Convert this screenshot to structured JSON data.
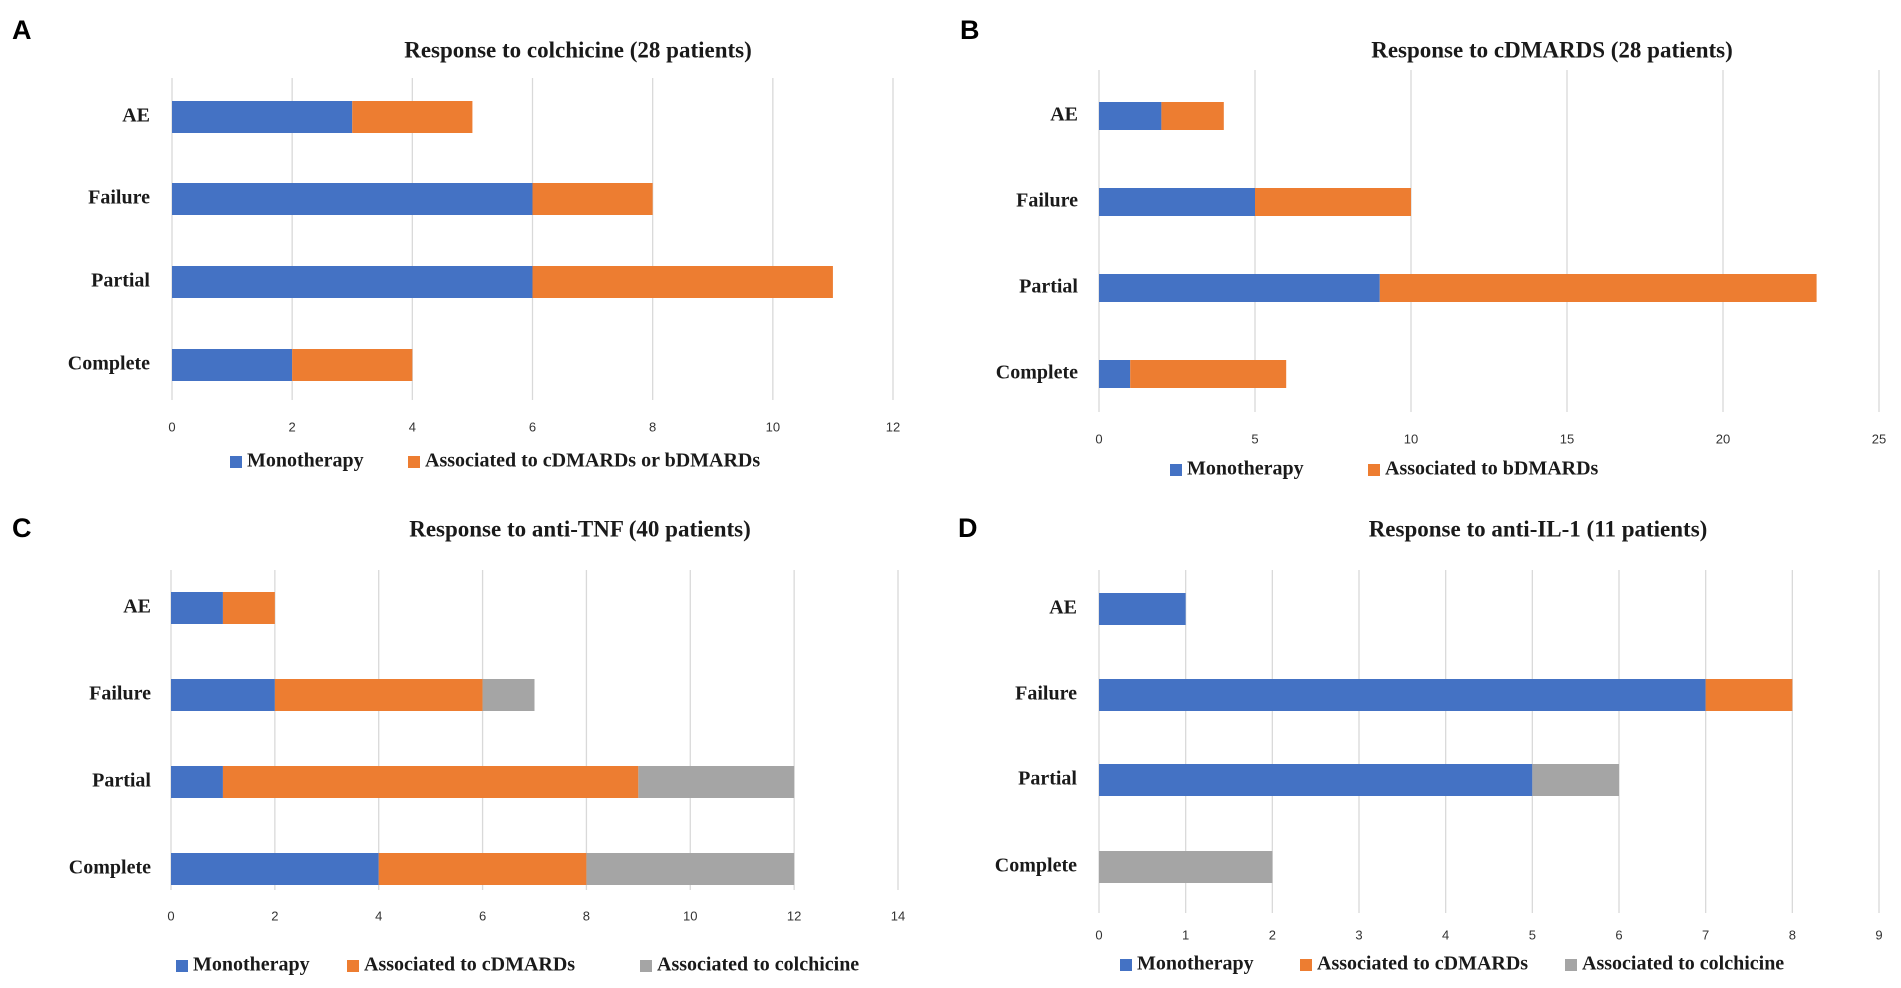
{
  "panels": [
    {
      "id": "A"
    },
    {
      "id": "B"
    },
    {
      "id": "C"
    },
    {
      "id": "D"
    }
  ],
  "colors": {
    "monotherapy": "#4472C4",
    "associated": "#ED7D31",
    "colchicine": "#A5A5A5"
  },
  "chart_data": [
    {
      "panel": "A",
      "type": "bar",
      "orientation": "horizontal",
      "stacked": true,
      "title": "Response to colchicine (28 patients)",
      "categories": [
        "AE",
        "Failure",
        "Partial",
        "Complete"
      ],
      "series": [
        {
          "name": "Monotherapy",
          "color": "#4472C4",
          "values": [
            3,
            6,
            6,
            2
          ]
        },
        {
          "name": "Associated to cDMARDs or bDMARDs",
          "color": "#ED7D31",
          "values": [
            2,
            2,
            5,
            2
          ]
        }
      ],
      "xlim": [
        0,
        12
      ],
      "xticks": [
        "0",
        "2",
        "4",
        "6",
        "8",
        "10",
        "12"
      ],
      "grid": true,
      "legend": "bottom"
    },
    {
      "panel": "B",
      "type": "bar",
      "orientation": "horizontal",
      "stacked": true,
      "title": "Response to cDMARDS (28 patients)",
      "categories": [
        "AE",
        "Failure",
        "Partial",
        "Complete"
      ],
      "series": [
        {
          "name": "Monotherapy",
          "color": "#4472C4",
          "values": [
            2,
            5,
            9,
            1
          ]
        },
        {
          "name": "Associated to bDMARDs",
          "color": "#ED7D31",
          "values": [
            2,
            5,
            14,
            5
          ]
        }
      ],
      "xlim": [
        0,
        25
      ],
      "xticks": [
        "0",
        "5",
        "10",
        "15",
        "20",
        "25"
      ],
      "grid": true,
      "legend": "bottom"
    },
    {
      "panel": "C",
      "type": "bar",
      "orientation": "horizontal",
      "stacked": true,
      "title": "Response to anti-TNF (40 patients)",
      "categories": [
        "AE",
        "Failure",
        "Partial",
        "Complete"
      ],
      "series": [
        {
          "name": "Monotherapy",
          "color": "#4472C4",
          "values": [
            1,
            2,
            1,
            4
          ]
        },
        {
          "name": "Associated to cDMARDs",
          "color": "#ED7D31",
          "values": [
            1,
            4,
            8,
            4
          ]
        },
        {
          "name": "Associated to colchicine",
          "color": "#A5A5A5",
          "values": [
            0,
            1,
            3,
            4
          ]
        }
      ],
      "xlim": [
        0,
        14
      ],
      "xticks": [
        "0",
        "2",
        "4",
        "6",
        "8",
        "10",
        "12",
        "14"
      ],
      "grid": true,
      "legend": "bottom"
    },
    {
      "panel": "D",
      "type": "bar",
      "orientation": "horizontal",
      "stacked": true,
      "title": "Response to anti-IL-1 (11 patients)",
      "categories": [
        "AE",
        "Failure",
        "Partial",
        "Complete"
      ],
      "series": [
        {
          "name": "Monotherapy",
          "color": "#4472C4",
          "values": [
            1,
            7,
            5,
            0
          ]
        },
        {
          "name": "Associated to cDMARDs",
          "color": "#ED7D31",
          "values": [
            0,
            1,
            0,
            0
          ]
        },
        {
          "name": "Associated to colchicine",
          "color": "#A5A5A5",
          "values": [
            0,
            0,
            1,
            2
          ]
        }
      ],
      "xlim": [
        0,
        9
      ],
      "xticks": [
        "0",
        "1",
        "2",
        "3",
        "4",
        "5",
        "6",
        "7",
        "8",
        "9"
      ],
      "grid": true,
      "legend": "bottom"
    }
  ]
}
